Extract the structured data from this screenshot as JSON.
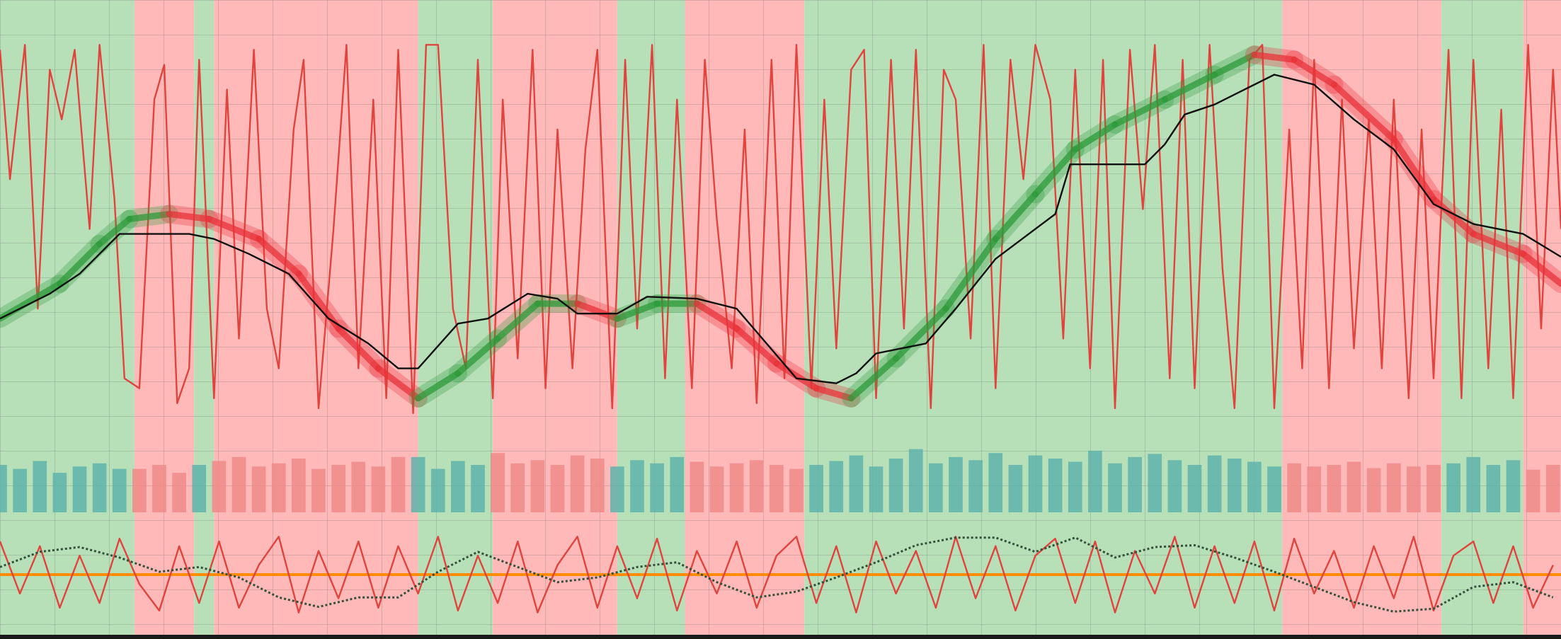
{
  "chart_data": [
    {
      "type": "line",
      "xlim": [
        0,
        1568
      ],
      "ylim": [
        0,
        430
      ],
      "regions": [
        {
          "start": 0,
          "end": 135,
          "color": "#b7e0b9"
        },
        {
          "start": 135,
          "end": 195,
          "color": "#ffb9b9"
        },
        {
          "start": 195,
          "end": 215,
          "color": "#b7e0b9"
        },
        {
          "start": 215,
          "end": 420,
          "color": "#ffb9b9"
        },
        {
          "start": 420,
          "end": 495,
          "color": "#b7e0b9"
        },
        {
          "start": 495,
          "end": 620,
          "color": "#ffb9b9"
        },
        {
          "start": 620,
          "end": 688,
          "color": "#b7e0b9"
        },
        {
          "start": 688,
          "end": 808,
          "color": "#ffb9b9"
        },
        {
          "start": 808,
          "end": 1288,
          "color": "#b7e0b9"
        },
        {
          "start": 1288,
          "end": 1448,
          "color": "#ffb9b9"
        },
        {
          "start": 1448,
          "end": 1530,
          "color": "#b7e0b9"
        },
        {
          "start": 1530,
          "end": 1568,
          "color": "#ffb9b9"
        }
      ],
      "series": [
        {
          "color": "#e0443c",
          "x": [
            0,
            10,
            25,
            38,
            50,
            62,
            75,
            90,
            100,
            115,
            125,
            140,
            155,
            165,
            178,
            190,
            200,
            215,
            228,
            240,
            255,
            268,
            280,
            295,
            305,
            320,
            335,
            348,
            360,
            375,
            388,
            400,
            415,
            428,
            440,
            455,
            468,
            480,
            495,
            505,
            520,
            535,
            548,
            560,
            575,
            588,
            600,
            615,
            628,
            640,
            655,
            668,
            680,
            695,
            708,
            720,
            735,
            748,
            760,
            775,
            788,
            800,
            815,
            828,
            840,
            855,
            868,
            880,
            895,
            908,
            920,
            935,
            948,
            960,
            975,
            988,
            1000,
            1015,
            1028,
            1040,
            1055,
            1068,
            1080,
            1095,
            1108,
            1120,
            1135,
            1148,
            1160,
            1175,
            1188,
            1200,
            1215,
            1228,
            1240,
            1255,
            1268,
            1280,
            1295,
            1308,
            1320,
            1335,
            1348,
            1360,
            1375,
            1388,
            1400,
            1415,
            1428,
            1440,
            1455,
            1468,
            1480,
            1495,
            1508,
            1520,
            1535,
            1548,
            1560,
            1568
          ],
          "values": [
            380,
            250,
            385,
            120,
            360,
            310,
            380,
            200,
            385,
            230,
            50,
            40,
            330,
            365,
            25,
            60,
            370,
            30,
            340,
            90,
            380,
            120,
            60,
            300,
            370,
            20,
            200,
            385,
            60,
            330,
            30,
            380,
            15,
            385,
            385,
            120,
            60,
            370,
            30,
            330,
            70,
            380,
            40,
            300,
            60,
            280,
            380,
            20,
            370,
            100,
            385,
            50,
            330,
            40,
            370,
            210,
            60,
            300,
            25,
            370,
            50,
            385,
            40,
            330,
            80,
            360,
            380,
            30,
            370,
            100,
            380,
            20,
            360,
            330,
            90,
            385,
            40,
            370,
            250,
            385,
            330,
            90,
            360,
            60,
            370,
            20,
            380,
            220,
            385,
            50,
            370,
            40,
            385,
            160,
            20,
            370,
            385,
            20,
            300,
            60,
            370,
            40,
            330,
            80,
            310,
            60,
            330,
            30,
            300,
            50,
            380,
            30,
            370,
            60,
            320,
            30,
            385,
            100,
            360,
            200
          ]
        },
        {
          "color": "#2e9a3a",
          "down_color": "#e8333a",
          "x": [
            0,
            60,
            100,
            130,
            170,
            210,
            260,
            300,
            340,
            380,
            420,
            460,
            500,
            540,
            580,
            620,
            660,
            700,
            740,
            780,
            820,
            855,
            900,
            950,
            1000,
            1040,
            1080,
            1120,
            1170,
            1220,
            1260,
            1300,
            1340,
            1400,
            1440,
            1480,
            1530,
            1568
          ],
          "values": [
            110,
            145,
            185,
            210,
            215,
            210,
            190,
            155,
            100,
            60,
            30,
            55,
            90,
            125,
            125,
            110,
            125,
            125,
            100,
            65,
            40,
            30,
            70,
            120,
            190,
            235,
            280,
            305,
            330,
            355,
            375,
            370,
            345,
            290,
            230,
            195,
            175,
            145
          ]
        },
        {
          "color": "#111111",
          "x": [
            0,
            50,
            80,
            120,
            190,
            215,
            250,
            290,
            330,
            370,
            400,
            420,
            460,
            490,
            530,
            560,
            580,
            620,
            650,
            700,
            740,
            770,
            800,
            840,
            860,
            880,
            930,
            960,
            1000,
            1040,
            1060,
            1075,
            1150,
            1170,
            1190,
            1220,
            1250,
            1280,
            1320,
            1360,
            1400,
            1440,
            1480,
            1530,
            1568
          ],
          "values": [
            110,
            135,
            155,
            195,
            195,
            190,
            175,
            155,
            110,
            85,
            60,
            60,
            105,
            110,
            135,
            130,
            115,
            115,
            132,
            130,
            120,
            85,
            50,
            45,
            55,
            75,
            85,
            120,
            170,
            200,
            215,
            265,
            265,
            285,
            315,
            325,
            340,
            355,
            345,
            310,
            280,
            225,
            205,
            195,
            172
          ]
        }
      ]
    },
    {
      "type": "bar",
      "xlim": [
        0,
        1568
      ],
      "ylim": [
        0,
        120
      ],
      "series": [
        {
          "color": "#5fb3aa",
          "x": [
            0,
            20,
            40,
            60,
            80,
            100,
            120,
            200,
            420,
            440,
            460,
            480,
            620,
            640,
            660,
            680,
            820,
            840,
            860,
            880,
            900,
            920,
            940,
            960,
            980,
            1000,
            1020,
            1040,
            1060,
            1080,
            1100,
            1120,
            1140,
            1160,
            1180,
            1200,
            1220,
            1240,
            1260,
            1280,
            1460,
            1480,
            1500,
            1520
          ],
          "values": [
            60,
            55,
            65,
            50,
            58,
            62,
            55,
            60,
            70,
            55,
            65,
            60,
            58,
            66,
            62,
            70,
            60,
            65,
            72,
            58,
            68,
            80,
            62,
            70,
            66,
            75,
            60,
            72,
            68,
            64,
            78,
            62,
            70,
            74,
            66,
            60,
            72,
            68,
            64,
            58,
            62,
            70,
            60,
            66
          ]
        },
        {
          "color": "#ee8a88",
          "x": [
            140,
            160,
            180,
            220,
            240,
            260,
            280,
            300,
            320,
            340,
            360,
            380,
            400,
            500,
            520,
            540,
            560,
            580,
            600,
            700,
            720,
            740,
            760,
            780,
            800,
            1300,
            1320,
            1340,
            1360,
            1380,
            1400,
            1420,
            1440,
            1540,
            1560
          ],
          "values": [
            55,
            60,
            50,
            65,
            70,
            58,
            62,
            68,
            55,
            60,
            64,
            58,
            70,
            75,
            62,
            66,
            60,
            72,
            68,
            64,
            58,
            62,
            66,
            60,
            55,
            62,
            58,
            60,
            64,
            56,
            62,
            58,
            60,
            54,
            60
          ]
        }
      ]
    },
    {
      "type": "line",
      "xlim": [
        0,
        1568
      ],
      "ylim": [
        0,
        100
      ],
      "level": 50,
      "level_color": "#ff8c00",
      "series": [
        {
          "color": "#e0443c",
          "x": [
            0,
            20,
            40,
            60,
            80,
            100,
            120,
            140,
            160,
            180,
            200,
            220,
            240,
            260,
            280,
            300,
            320,
            340,
            360,
            380,
            400,
            420,
            440,
            460,
            480,
            500,
            520,
            540,
            560,
            580,
            600,
            620,
            640,
            660,
            680,
            700,
            720,
            740,
            760,
            780,
            800,
            820,
            840,
            860,
            880,
            900,
            920,
            940,
            960,
            980,
            1000,
            1020,
            1040,
            1060,
            1080,
            1100,
            1120,
            1140,
            1160,
            1180,
            1200,
            1220,
            1240,
            1260,
            1280,
            1300,
            1320,
            1340,
            1360,
            1380,
            1400,
            1420,
            1440,
            1460,
            1480,
            1500,
            1520,
            1540,
            1560
          ],
          "values": [
            85,
            30,
            80,
            15,
            70,
            20,
            88,
            40,
            12,
            80,
            20,
            85,
            15,
            60,
            90,
            10,
            75,
            25,
            85,
            15,
            80,
            30,
            90,
            12,
            70,
            20,
            85,
            10,
            60,
            90,
            15,
            80,
            25,
            88,
            12,
            75,
            30,
            85,
            15,
            70,
            90,
            20,
            80,
            10,
            85,
            30,
            75,
            15,
            90,
            25,
            80,
            12,
            70,
            88,
            20,
            85,
            10,
            75,
            30,
            90,
            15,
            80,
            20,
            85,
            12,
            88,
            30,
            75,
            15,
            80,
            25,
            90,
            12,
            70,
            85,
            20,
            80,
            15,
            60
          ]
        },
        {
          "color": "#34503a",
          "dashed": true,
          "x": [
            0,
            40,
            80,
            120,
            160,
            200,
            240,
            280,
            320,
            360,
            400,
            440,
            480,
            520,
            560,
            600,
            640,
            680,
            720,
            760,
            800,
            840,
            880,
            920,
            960,
            1000,
            1040,
            1080,
            1120,
            1160,
            1200,
            1240,
            1280,
            1320,
            1360,
            1400,
            1440,
            1480,
            1520,
            1560
          ],
          "values": [
            58,
            74,
            79,
            68,
            53,
            58,
            47,
            26,
            16,
            26,
            26,
            53,
            74,
            58,
            42,
            47,
            58,
            63,
            42,
            26,
            32,
            47,
            63,
            81,
            89,
            89,
            74,
            89,
            68,
            79,
            81,
            68,
            53,
            37,
            21,
            11,
            14,
            37,
            42,
            26
          ]
        }
      ]
    }
  ]
}
